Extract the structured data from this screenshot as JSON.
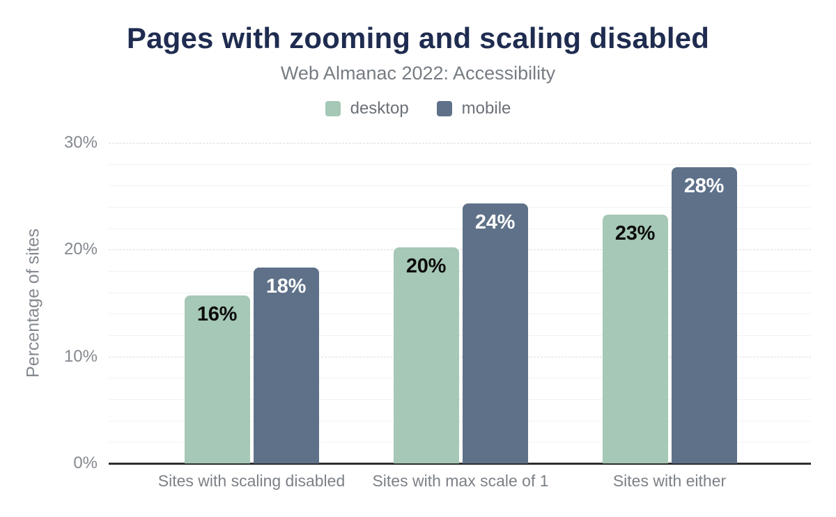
{
  "title": "Pages with zooming and scaling disabled",
  "subtitle": "Web Almanac 2022: Accessibility",
  "chart_data": {
    "type": "bar",
    "title": "Pages with zooming and scaling disabled",
    "subtitle": "Web Almanac 2022: Accessibility",
    "categories": [
      "Sites with scaling disabled",
      "Sites with max scale of 1",
      "Sites with either"
    ],
    "series": [
      {
        "name": "desktop",
        "color": "#a6c8b6",
        "label_color": "#0b0b0b",
        "values": [
          15.7,
          20.2,
          23.3
        ],
        "labels": [
          "16%",
          "20%",
          "23%"
        ]
      },
      {
        "name": "mobile",
        "color": "#5e7189",
        "label_color": "#ffffff",
        "values": [
          18.3,
          24.3,
          27.7
        ],
        "labels": [
          "18%",
          "24%",
          "28%"
        ]
      }
    ],
    "xlabel": "",
    "ylabel": "Percentage of sites",
    "ylim": [
      0,
      30
    ],
    "yticks": [
      0,
      10,
      20,
      30
    ],
    "ytick_labels": [
      "0%",
      "10%",
      "20%",
      "30%"
    ],
    "minor_grid_step": 2,
    "grid": true,
    "legend_position": "top"
  },
  "colors": {
    "title": "#1f2c50",
    "subtitle": "#767c83",
    "axis_text": "#84898f",
    "axis_line": "#2b2d2e",
    "desktop": "#a6c8b6",
    "mobile": "#5e7189",
    "background": "#ffffff"
  }
}
